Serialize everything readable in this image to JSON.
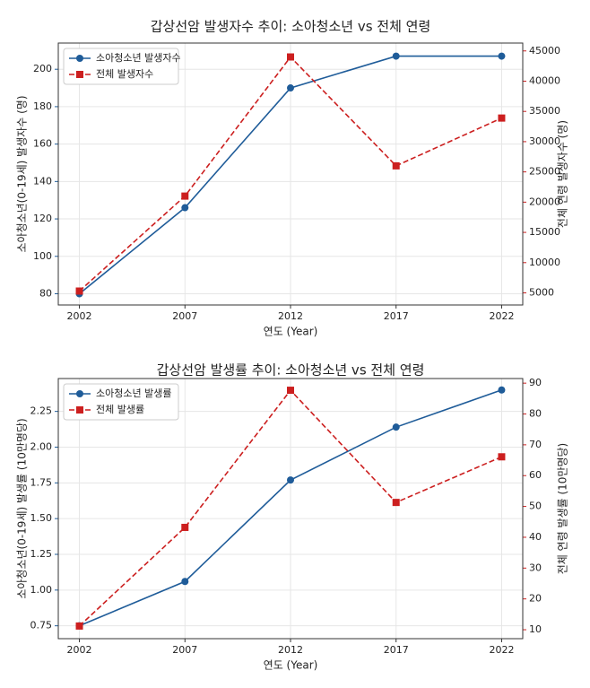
{
  "chart_data": [
    {
      "type": "line",
      "title": "갑상선암 발생자수 추이: 소아청소년 vs 전체 연령",
      "xlabel": "연도 (Year)",
      "ylabel": "소아청소년(0-19세) 발생자수 (명)",
      "y2label": "전체 연령 발생자수 (명)",
      "x": [
        2002,
        2007,
        2012,
        2017,
        2022
      ],
      "xlim": [
        2001,
        2023
      ],
      "xticks": [
        2002,
        2007,
        2012,
        2017,
        2022
      ],
      "ylim": [
        74,
        214
      ],
      "yticks": [
        80,
        100,
        120,
        140,
        160,
        180,
        200
      ],
      "y2lim": [
        3000,
        46300
      ],
      "y2ticks": [
        5000,
        10000,
        15000,
        20000,
        25000,
        30000,
        35000,
        40000,
        45000
      ],
      "grid": true,
      "legend": "upper left",
      "series": [
        {
          "name": "소아청소년 발생자수",
          "color": "#1f5c99",
          "marker": "circle",
          "dash": false,
          "axis": "y",
          "values": [
            80,
            126,
            190,
            207,
            207
          ]
        },
        {
          "name": "전체 발생자수",
          "color": "#cc1f1f",
          "marker": "square",
          "dash": true,
          "axis": "y2",
          "values": [
            5300,
            21000,
            44000,
            26000,
            33900
          ]
        }
      ]
    },
    {
      "type": "line",
      "title": "갑상선암 발생률 추이: 소아청소년 vs 전체 연령",
      "xlabel": "연도 (Year)",
      "ylabel": "소아청소년(0-19세) 발생률 (10만명당)",
      "y2label": "전체 연령 발생률 (10만명당)",
      "x": [
        2002,
        2007,
        2012,
        2017,
        2022
      ],
      "xlim": [
        2001,
        2023
      ],
      "xticks": [
        2002,
        2007,
        2012,
        2017,
        2022
      ],
      "ylim": [
        0.66,
        2.48
      ],
      "yticks": [
        0.75,
        {
          "value": 1,
          "label": "1.00"
        },
        1.25,
        {
          "value": 1.5,
          "label": "1.50"
        },
        1.75,
        {
          "value": 2,
          "label": "2.00"
        },
        2.25
      ],
      "y2lim": [
        7.1,
        91.5
      ],
      "y2ticks": [
        10,
        20,
        30,
        40,
        50,
        60,
        70,
        80,
        90
      ],
      "grid": true,
      "legend": "upper left",
      "series": [
        {
          "name": "소아청소년 발생률",
          "color": "#1f5c99",
          "marker": "circle",
          "dash": false,
          "axis": "y",
          "values": [
            0.75,
            1.06,
            1.77,
            2.14,
            2.4
          ]
        },
        {
          "name": "전체 발생률",
          "color": "#cc1f1f",
          "marker": "square",
          "dash": true,
          "axis": "y2",
          "values": [
            11.2,
            43.2,
            87.7,
            51.3,
            66.1
          ]
        }
      ]
    }
  ]
}
